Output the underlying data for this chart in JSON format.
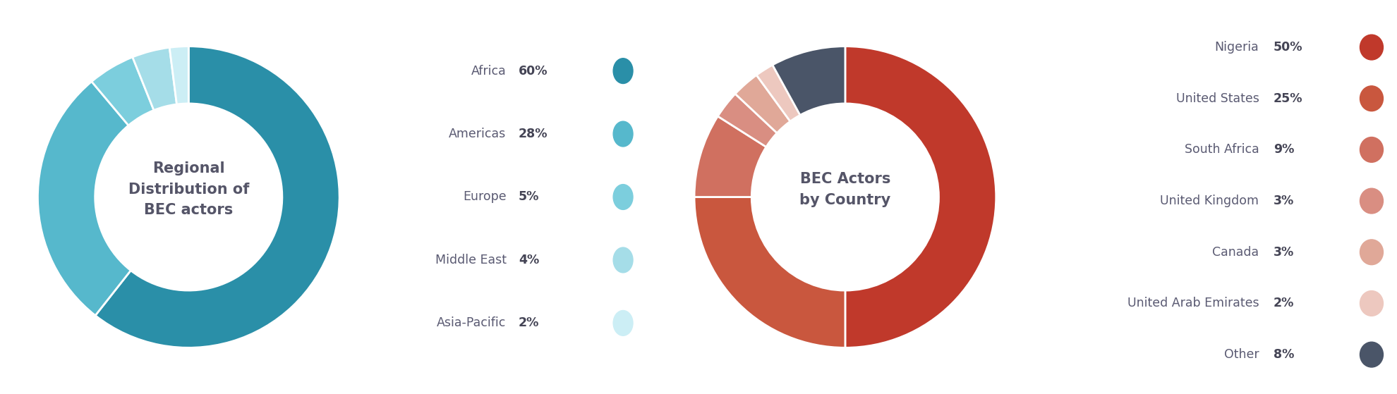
{
  "chart1": {
    "title": "Regional\nDistribution of\nBEC actors",
    "labels": [
      "Africa",
      "Americas",
      "Europe",
      "Middle East",
      "Asia-Pacific"
    ],
    "values": [
      60,
      28,
      5,
      4,
      2
    ],
    "pct_labels": [
      "60%",
      "28%",
      "5%",
      "4%",
      "2%"
    ],
    "colors": [
      "#2a8fa8",
      "#56b8cc",
      "#7ccedd",
      "#a5dde8",
      "#cceef5"
    ],
    "start_angle": 90
  },
  "chart2": {
    "title": "BEC Actors\nby Country",
    "labels": [
      "Nigeria",
      "United States",
      "South Africa",
      "United Kingdom",
      "Canada",
      "United Arab Emirates",
      "Other"
    ],
    "values": [
      50,
      25,
      9,
      3,
      3,
      2,
      8
    ],
    "pct_labels": [
      "50%",
      "25%",
      "9%",
      "3%",
      "3%",
      "2%",
      "8%"
    ],
    "colors": [
      "#c0392b",
      "#c9573e",
      "#d07060",
      "#d98e82",
      "#e0a898",
      "#edc8bf",
      "#4a5568"
    ],
    "start_angle": 90
  },
  "label_color": "#5a5a72",
  "pct_color": "#444455",
  "title_color": "#555568",
  "bg_color": "#ffffff",
  "donut_width": 0.38
}
